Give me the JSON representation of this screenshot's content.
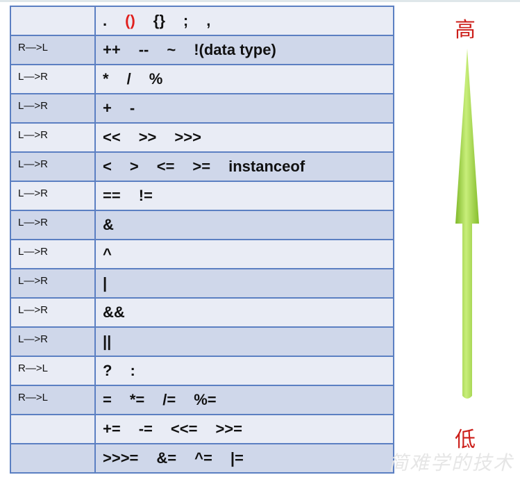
{
  "rows": [
    {
      "assoc": "",
      "ops": [
        ".",
        "()",
        "{}",
        ";",
        ","
      ],
      "red": [
        1
      ]
    },
    {
      "assoc": "R—>L",
      "ops": [
        "++",
        "--",
        "~",
        "!(data type)"
      ],
      "red": []
    },
    {
      "assoc": "L—>R",
      "ops": [
        "*",
        "/",
        "%"
      ],
      "red": []
    },
    {
      "assoc": "L—>R",
      "ops": [
        "+",
        "-"
      ],
      "red": []
    },
    {
      "assoc": "L—>R",
      "ops": [
        "<<",
        ">>",
        ">>>"
      ],
      "red": []
    },
    {
      "assoc": "L—>R",
      "ops": [
        "<",
        ">",
        "<=",
        ">=",
        "instanceof"
      ],
      "red": []
    },
    {
      "assoc": "L—>R",
      "ops": [
        "==",
        "!="
      ],
      "red": []
    },
    {
      "assoc": "L—>R",
      "ops": [
        "&"
      ],
      "red": []
    },
    {
      "assoc": "L—>R",
      "ops": [
        "^"
      ],
      "red": []
    },
    {
      "assoc": "L—>R",
      "ops": [
        "|"
      ],
      "red": []
    },
    {
      "assoc": "L—>R",
      "ops": [
        "&&"
      ],
      "red": []
    },
    {
      "assoc": "L—>R",
      "ops": [
        "||"
      ],
      "red": []
    },
    {
      "assoc": "R—>L",
      "ops": [
        "?",
        ":"
      ],
      "red": []
    },
    {
      "assoc": "R—>L",
      "ops": [
        "=",
        "*=",
        "/=",
        "%="
      ],
      "red": []
    },
    {
      "assoc": "",
      "ops": [
        "+=",
        "-=",
        "<<=",
        ">>="
      ],
      "red": []
    },
    {
      "assoc": "",
      "ops": [
        ">>>=",
        "&=",
        "^=",
        "|="
      ],
      "red": []
    }
  ],
  "arrow": {
    "top_label": "高",
    "bottom_label": "低",
    "color": "#9ed23a"
  },
  "watermark": "简难学的技术",
  "colors": {
    "border": "#5b7fc2",
    "row_light": "#e9ecf5",
    "row_dark": "#cfd7ea",
    "red": "#e0201e"
  }
}
